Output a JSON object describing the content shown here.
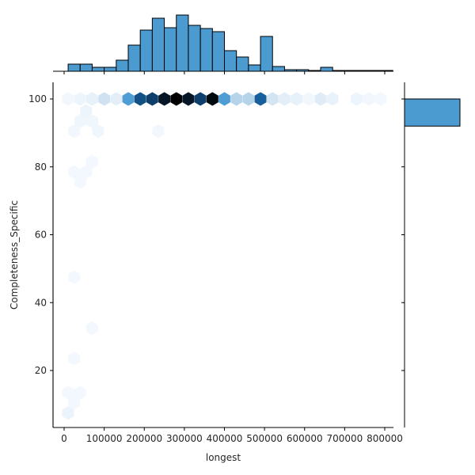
{
  "chart_data": {
    "type": "hexbin",
    "subtype": "jointplot",
    "title": "",
    "xlabel": "longest",
    "ylabel": "Completeness_Specific",
    "xlim": [
      -30000,
      820000
    ],
    "ylim": [
      3.3,
      105
    ],
    "x_ticks": [
      0,
      100000,
      200000,
      300000,
      400000,
      500000,
      600000,
      700000,
      800000
    ],
    "x_tick_labels": [
      "0",
      "100000",
      "200000",
      "300000",
      "400000",
      "500000",
      "600000",
      "700000",
      "800000"
    ],
    "y_ticks": [
      20,
      40,
      60,
      80,
      100
    ],
    "y_tick_labels": [
      "20",
      "40",
      "60",
      "80",
      "100"
    ],
    "grid": false,
    "colormap": "Blues",
    "accent_color": "#4c9bd0",
    "hexbins": [
      {
        "x": 10000,
        "y": 100,
        "shade": 0.03
      },
      {
        "x": 40000,
        "y": 100,
        "shade": 0.05
      },
      {
        "x": 70000,
        "y": 100,
        "shade": 0.08
      },
      {
        "x": 100000,
        "y": 100,
        "shade": 0.2
      },
      {
        "x": 130000,
        "y": 100,
        "shade": 0.1
      },
      {
        "x": 160000,
        "y": 100,
        "shade": 0.55
      },
      {
        "x": 190000,
        "y": 100,
        "shade": 0.8
      },
      {
        "x": 220000,
        "y": 100,
        "shade": 0.85
      },
      {
        "x": 250000,
        "y": 100,
        "shade": 0.95
      },
      {
        "x": 280000,
        "y": 100,
        "shade": 1.0
      },
      {
        "x": 310000,
        "y": 100,
        "shade": 0.95
      },
      {
        "x": 340000,
        "y": 100,
        "shade": 0.85
      },
      {
        "x": 370000,
        "y": 100,
        "shade": 0.98
      },
      {
        "x": 400000,
        "y": 100,
        "shade": 0.55
      },
      {
        "x": 430000,
        "y": 100,
        "shade": 0.3
      },
      {
        "x": 460000,
        "y": 100,
        "shade": 0.3
      },
      {
        "x": 490000,
        "y": 100,
        "shade": 0.75
      },
      {
        "x": 520000,
        "y": 100,
        "shade": 0.18
      },
      {
        "x": 550000,
        "y": 100,
        "shade": 0.1
      },
      {
        "x": 580000,
        "y": 100,
        "shade": 0.08
      },
      {
        "x": 610000,
        "y": 100,
        "shade": 0.03
      },
      {
        "x": 640000,
        "y": 100,
        "shade": 0.12
      },
      {
        "x": 670000,
        "y": 100,
        "shade": 0.07
      },
      {
        "x": 730000,
        "y": 100,
        "shade": 0.05
      },
      {
        "x": 760000,
        "y": 100,
        "shade": 0.03
      },
      {
        "x": 790000,
        "y": 100,
        "shade": 0.02
      },
      {
        "x": 55000,
        "y": 96.5,
        "shade": 0.05
      },
      {
        "x": 40000,
        "y": 93.5,
        "shade": 0.04
      },
      {
        "x": 70000,
        "y": 93.5,
        "shade": 0.04
      },
      {
        "x": 25000,
        "y": 90.5,
        "shade": 0.03
      },
      {
        "x": 85000,
        "y": 90.5,
        "shade": 0.04
      },
      {
        "x": 235000,
        "y": 90.5,
        "shade": 0.03
      },
      {
        "x": 70000,
        "y": 81.5,
        "shade": 0.02
      },
      {
        "x": 25000,
        "y": 78.5,
        "shade": 0.02
      },
      {
        "x": 55000,
        "y": 78.5,
        "shade": 0.02
      },
      {
        "x": 40000,
        "y": 75.5,
        "shade": 0.02
      },
      {
        "x": 25000,
        "y": 47.5,
        "shade": 0.02
      },
      {
        "x": 70000,
        "y": 32.5,
        "shade": 0.02
      },
      {
        "x": 25000,
        "y": 23.5,
        "shade": 0.02
      },
      {
        "x": 10000,
        "y": 13.5,
        "shade": 0.02
      },
      {
        "x": 40000,
        "y": 13.5,
        "shade": 0.02
      },
      {
        "x": 25000,
        "y": 10.5,
        "shade": 0.02
      },
      {
        "x": 10000,
        "y": 7.5,
        "shade": 0.06
      }
    ],
    "marginal_x": {
      "type": "histogram",
      "bin_start": 10000,
      "bin_width": 30000,
      "counts": [
        9,
        9,
        5,
        5,
        14,
        33,
        52,
        67,
        55,
        71,
        58,
        54,
        50,
        26,
        18,
        8,
        44,
        6,
        2,
        2,
        1,
        5,
        1,
        1,
        1,
        1,
        1
      ],
      "color": "#4c9bd0"
    },
    "marginal_y": {
      "type": "histogram",
      "bins": [
        {
          "y0": 92,
          "y1": 100,
          "count": 100
        }
      ],
      "color": "#4c9bd0"
    }
  }
}
